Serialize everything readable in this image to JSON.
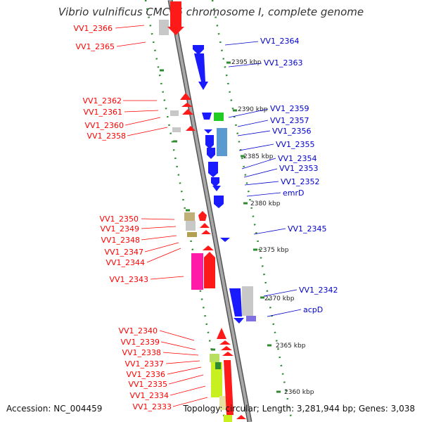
{
  "title": "Vibrio vulnificus CMCP6 chromosome I, complete genome",
  "footer": {
    "accession": "Accession: NC_004459",
    "summary": "Topology: circular; Length: 3,281,944 bp; Genes: 3,038"
  },
  "colors": {
    "forward_label": "#ff0000",
    "reverse_label": "#0000cc",
    "backbone": "#999999",
    "ticks": "#2e8b2e",
    "scale_text": "#222222"
  },
  "scale_labels": [
    "2395 kbp",
    "2390 kbp",
    "2385 kbp",
    "2380 kbp",
    "2375 kbp",
    "2370 kbp",
    "2365 kbp",
    "2360 kbp"
  ],
  "genes_left": [
    "VV1_2366",
    "VV1_2365",
    "VV1_2362",
    "VV1_2361",
    "VV1_2360",
    "VV1_2358",
    "VV1_2350",
    "VV1_2349",
    "VV1_2348",
    "VV1_2347",
    "VV1_2344",
    "VV1_2343",
    "VV1_2340",
    "VV1_2339",
    "VV1_2338",
    "VV1_2337",
    "VV1_2336",
    "VV1_2335",
    "VV1_2334",
    "VV1_2333"
  ],
  "genes_right": [
    "VV1_2364",
    "VV1_2363",
    "VV1_2359",
    "VV1_2357",
    "VV1_2356",
    "VV1_2355",
    "VV1_2354",
    "VV1_2353",
    "VV1_2352",
    "emrD",
    "VV1_2345",
    "VV1_2342",
    "acpD"
  ]
}
